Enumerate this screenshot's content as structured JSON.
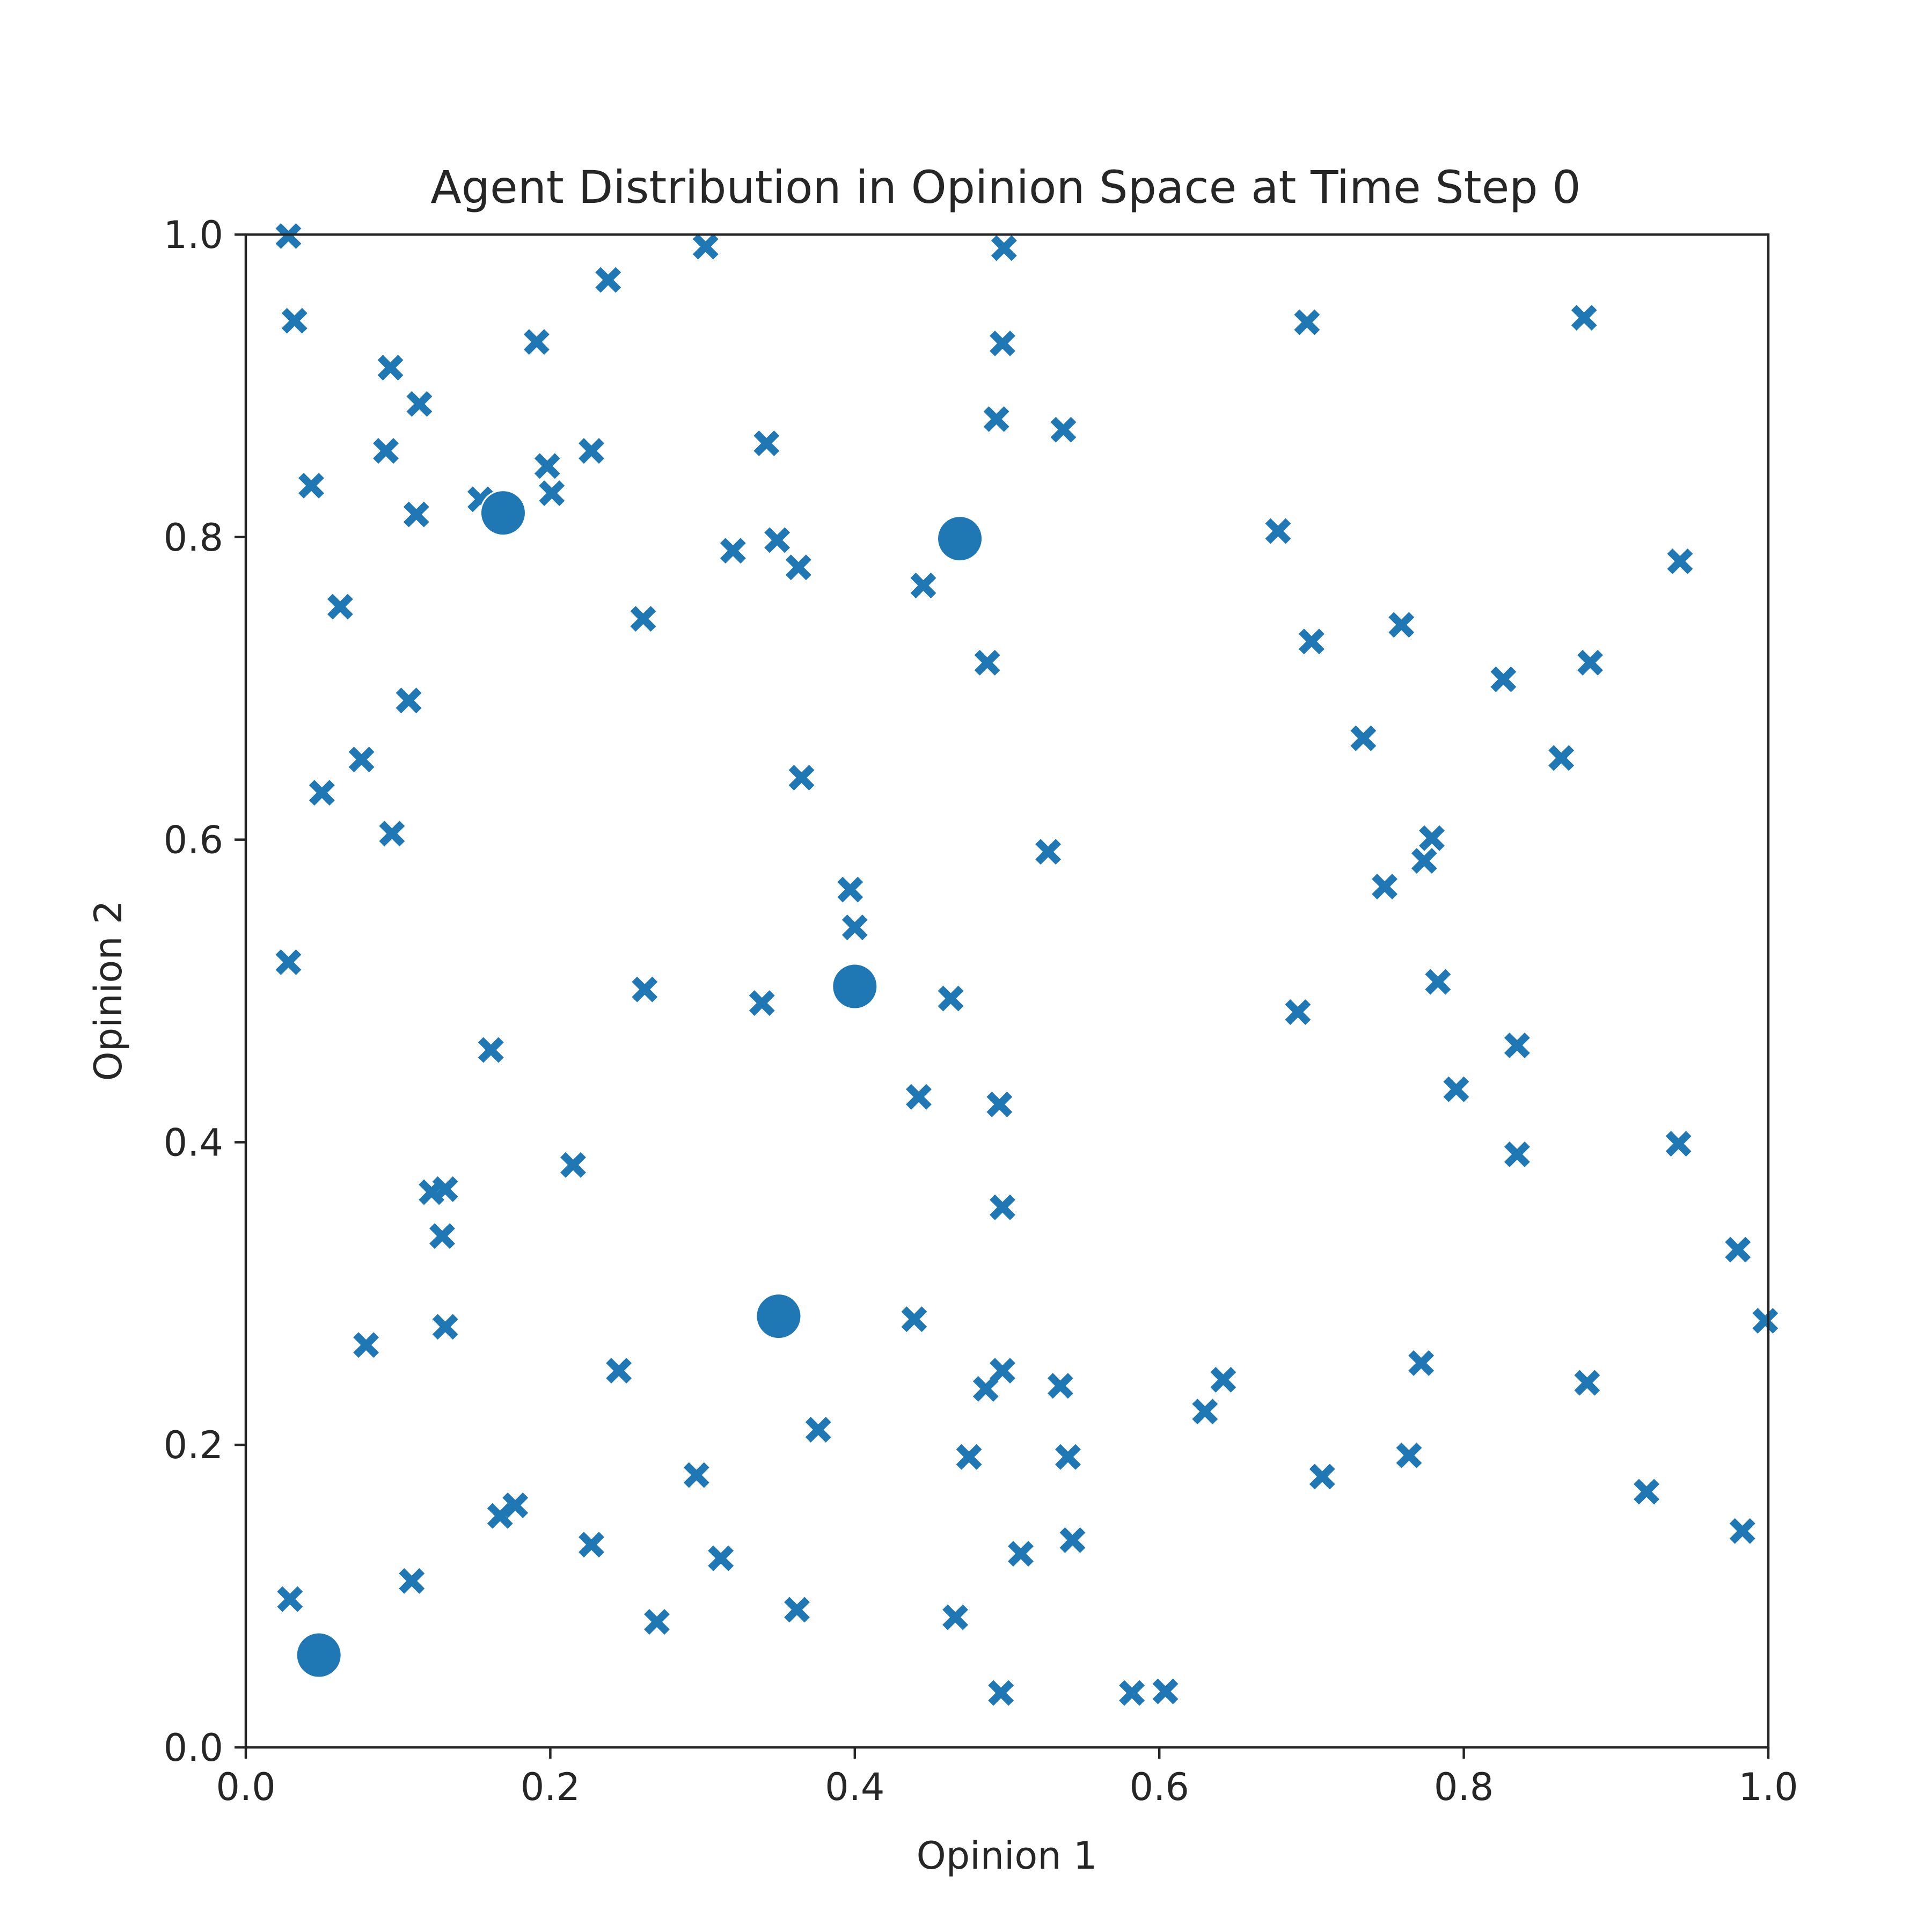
{
  "chart_data": {
    "type": "scatter",
    "title": "Agent Distribution in Opinion Space at Time Step 0",
    "xlabel": "Opinion 1",
    "ylabel": "Opinion 2",
    "xlim": [
      0,
      1
    ],
    "ylim": [
      0,
      1
    ],
    "xticks": [
      "0.0",
      "0.2",
      "0.4",
      "0.6",
      "0.8",
      "1.0"
    ],
    "yticks": [
      "0.0",
      "0.2",
      "0.4",
      "0.6",
      "0.8",
      "1.0"
    ],
    "grid": false,
    "legend": "none",
    "color": "#1f77b4",
    "series": [
      {
        "marker": "x",
        "points": [
          [
            0.028,
            0.999
          ],
          [
            0.032,
            0.943
          ],
          [
            0.238,
            0.97
          ],
          [
            0.302,
            0.992
          ],
          [
            0.498,
            0.991
          ],
          [
            0.191,
            0.929
          ],
          [
            0.095,
            0.912
          ],
          [
            0.497,
            0.928
          ],
          [
            0.697,
            0.942
          ],
          [
            0.879,
            0.945
          ],
          [
            0.114,
            0.888
          ],
          [
            0.493,
            0.878
          ],
          [
            0.537,
            0.871
          ],
          [
            0.092,
            0.857
          ],
          [
            0.227,
            0.857
          ],
          [
            0.342,
            0.862
          ],
          [
            0.198,
            0.847
          ],
          [
            0.043,
            0.834
          ],
          [
            0.201,
            0.829
          ],
          [
            0.154,
            0.825
          ],
          [
            0.112,
            0.815
          ],
          [
            0.349,
            0.798
          ],
          [
            0.32,
            0.791
          ],
          [
            0.363,
            0.78
          ],
          [
            0.678,
            0.804
          ],
          [
            0.942,
            0.784
          ],
          [
            0.062,
            0.754
          ],
          [
            0.445,
            0.768
          ],
          [
            0.261,
            0.746
          ],
          [
            0.759,
            0.742
          ],
          [
            0.7,
            0.731
          ],
          [
            0.487,
            0.717
          ],
          [
            0.883,
            0.717
          ],
          [
            0.826,
            0.706
          ],
          [
            0.107,
            0.692
          ],
          [
            0.734,
            0.667
          ],
          [
            0.076,
            0.653
          ],
          [
            0.864,
            0.654
          ],
          [
            0.05,
            0.631
          ],
          [
            0.365,
            0.641
          ],
          [
            0.096,
            0.604
          ],
          [
            0.527,
            0.592
          ],
          [
            0.779,
            0.601
          ],
          [
            0.774,
            0.586
          ],
          [
            0.397,
            0.567
          ],
          [
            0.748,
            0.569
          ],
          [
            0.4,
            0.542
          ],
          [
            0.028,
            0.519
          ],
          [
            0.262,
            0.501
          ],
          [
            0.339,
            0.492
          ],
          [
            0.463,
            0.495
          ],
          [
            0.783,
            0.506
          ],
          [
            0.691,
            0.486
          ],
          [
            0.161,
            0.461
          ],
          [
            0.835,
            0.464
          ],
          [
            0.442,
            0.43
          ],
          [
            0.495,
            0.425
          ],
          [
            0.795,
            0.435
          ],
          [
            0.941,
            0.399
          ],
          [
            0.215,
            0.385
          ],
          [
            0.835,
            0.392
          ],
          [
            0.131,
            0.369
          ],
          [
            0.122,
            0.367
          ],
          [
            0.497,
            0.357
          ],
          [
            0.129,
            0.338
          ],
          [
            0.98,
            0.329
          ],
          [
            0.131,
            0.278
          ],
          [
            0.439,
            0.283
          ],
          [
            0.998,
            0.282
          ],
          [
            0.079,
            0.266
          ],
          [
            0.245,
            0.249
          ],
          [
            0.497,
            0.249
          ],
          [
            0.772,
            0.254
          ],
          [
            0.486,
            0.237
          ],
          [
            0.535,
            0.239
          ],
          [
            0.642,
            0.243
          ],
          [
            0.881,
            0.241
          ],
          [
            0.63,
            0.222
          ],
          [
            0.376,
            0.21
          ],
          [
            0.296,
            0.18
          ],
          [
            0.475,
            0.192
          ],
          [
            0.54,
            0.192
          ],
          [
            0.764,
            0.193
          ],
          [
            0.707,
            0.179
          ],
          [
            0.92,
            0.169
          ],
          [
            0.177,
            0.16
          ],
          [
            0.167,
            0.153
          ],
          [
            0.543,
            0.137
          ],
          [
            0.983,
            0.143
          ],
          [
            0.227,
            0.134
          ],
          [
            0.312,
            0.125
          ],
          [
            0.509,
            0.128
          ],
          [
            0.109,
            0.11
          ],
          [
            0.029,
            0.098
          ],
          [
            0.362,
            0.091
          ],
          [
            0.466,
            0.086
          ],
          [
            0.27,
            0.083
          ],
          [
            0.496,
            0.036
          ],
          [
            0.582,
            0.036
          ],
          [
            0.604,
            0.037
          ]
        ]
      },
      {
        "marker": "o",
        "points": [
          [
            0.169,
            0.816
          ],
          [
            0.469,
            0.799
          ],
          [
            0.4,
            0.503
          ],
          [
            0.35,
            0.285
          ],
          [
            0.048,
            0.061
          ]
        ]
      }
    ]
  }
}
